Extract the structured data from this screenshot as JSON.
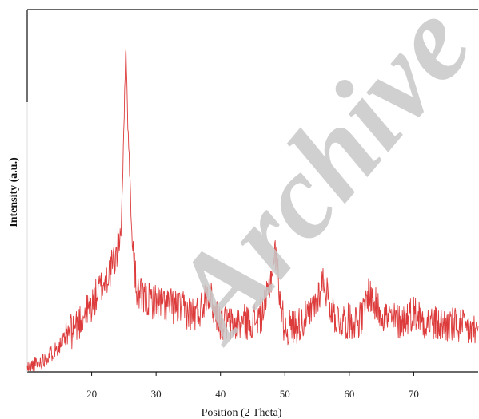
{
  "chart_data": {
    "type": "line",
    "title": "",
    "xlabel": "Position (2 Theta)",
    "ylabel": "Intensity (a.u.)",
    "xlim": [
      10,
      80
    ],
    "ylim": [
      0,
      100
    ],
    "xticks": [
      20,
      30,
      40,
      50,
      60,
      70
    ],
    "yticks_shown": false,
    "grid": false,
    "line_color": "#dd3b3b",
    "watermark": "Archive",
    "series": [
      {
        "x": [
          10,
          12,
          14,
          16,
          18,
          20,
          21,
          22,
          23,
          24,
          24.6,
          25.0,
          25.3,
          25.6,
          25.9,
          26.2,
          26.6,
          27,
          28,
          30,
          32,
          34,
          36,
          37,
          38,
          39,
          40,
          42,
          44,
          46,
          47,
          48,
          48.5,
          49,
          49.5,
          50,
          52,
          54,
          55,
          56,
          57,
          58,
          60,
          62,
          63,
          64,
          66,
          68,
          70,
          72,
          74,
          76,
          78,
          80
        ],
        "y": [
          1,
          3,
          6,
          10,
          15,
          20,
          24,
          27,
          31,
          36,
          45,
          72,
          100,
          75,
          60,
          42,
          32,
          24,
          22,
          21,
          20,
          19,
          17,
          19,
          25,
          19,
          15,
          14,
          15,
          16,
          20,
          30,
          36,
          28,
          18,
          13,
          14,
          17,
          22,
          28,
          20,
          16,
          15,
          16,
          24,
          20,
          16,
          15,
          18,
          15,
          14,
          14,
          13,
          12
        ]
      }
    ]
  }
}
